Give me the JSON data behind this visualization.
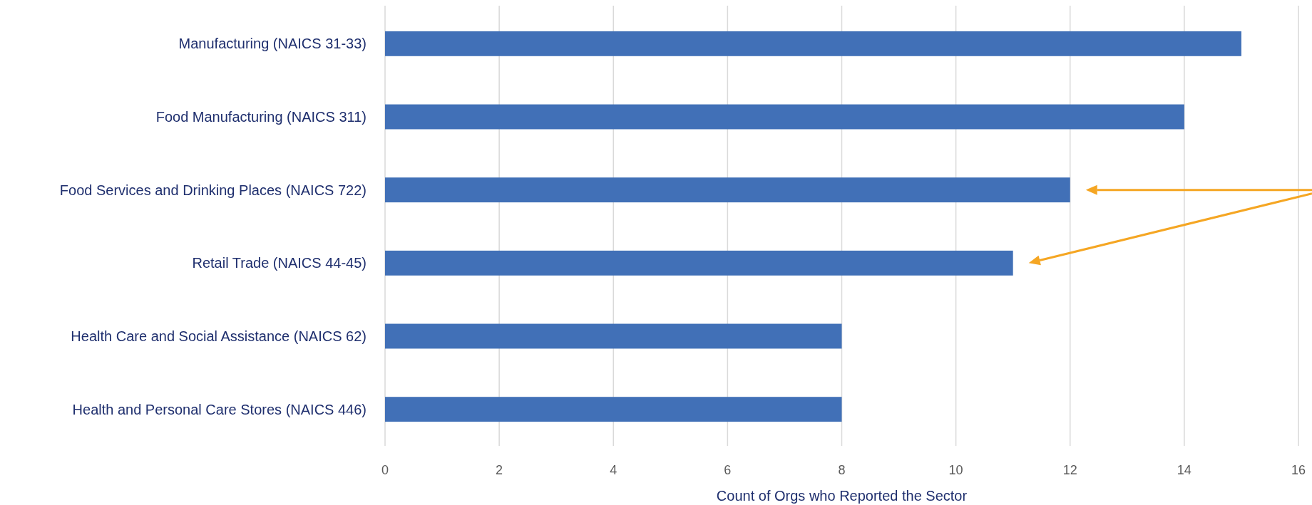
{
  "chart_data": {
    "type": "bar",
    "orientation": "horizontal",
    "categories": [
      "Manufacturing (NAICS 31-33)",
      "Food Manufacturing (NAICS 311)",
      "Food Services and Drinking Places (NAICS 722)",
      "Retail Trade (NAICS 44-45)",
      "Health Care and Social Assistance (NAICS 62)",
      "Health and Personal Care Stores (NAICS 446)"
    ],
    "values": [
      15,
      14,
      12,
      11,
      8,
      8
    ],
    "color": "#4170b7",
    "xlim": [
      0,
      16
    ],
    "xticks": [
      0,
      2,
      4,
      6,
      8,
      10,
      12,
      14,
      16
    ],
    "xlabel": "Count of Orgs who Reported the Sector",
    "grid": "x"
  }
}
